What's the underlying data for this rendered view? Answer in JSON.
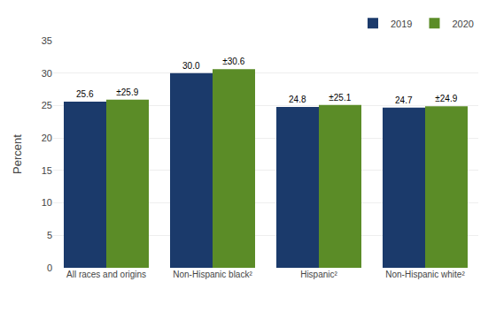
{
  "chart_data": {
    "type": "bar",
    "categories": [
      "All races and origins",
      "Non-Hispanic black²",
      "Hispanic²",
      "Non-Hispanic white²"
    ],
    "series": [
      {
        "name": "2019",
        "color": "#1b3a6b",
        "values": [
          25.6,
          30.0,
          24.8,
          24.7
        ],
        "value_labels": [
          "25.6",
          "30.0",
          "24.8",
          "24.7"
        ]
      },
      {
        "name": "2020",
        "color": "#5b8c27",
        "values": [
          25.9,
          30.6,
          25.1,
          24.9
        ],
        "value_labels": [
          "±25.9",
          "±30.6",
          "±25.1",
          "±24.9"
        ]
      }
    ],
    "ylabel": "Percent",
    "ylim": [
      0,
      35
    ],
    "yticks": [
      0,
      5,
      10,
      15,
      20,
      25,
      30,
      35
    ],
    "grid": true,
    "data_labels": true,
    "legend": "top right"
  }
}
